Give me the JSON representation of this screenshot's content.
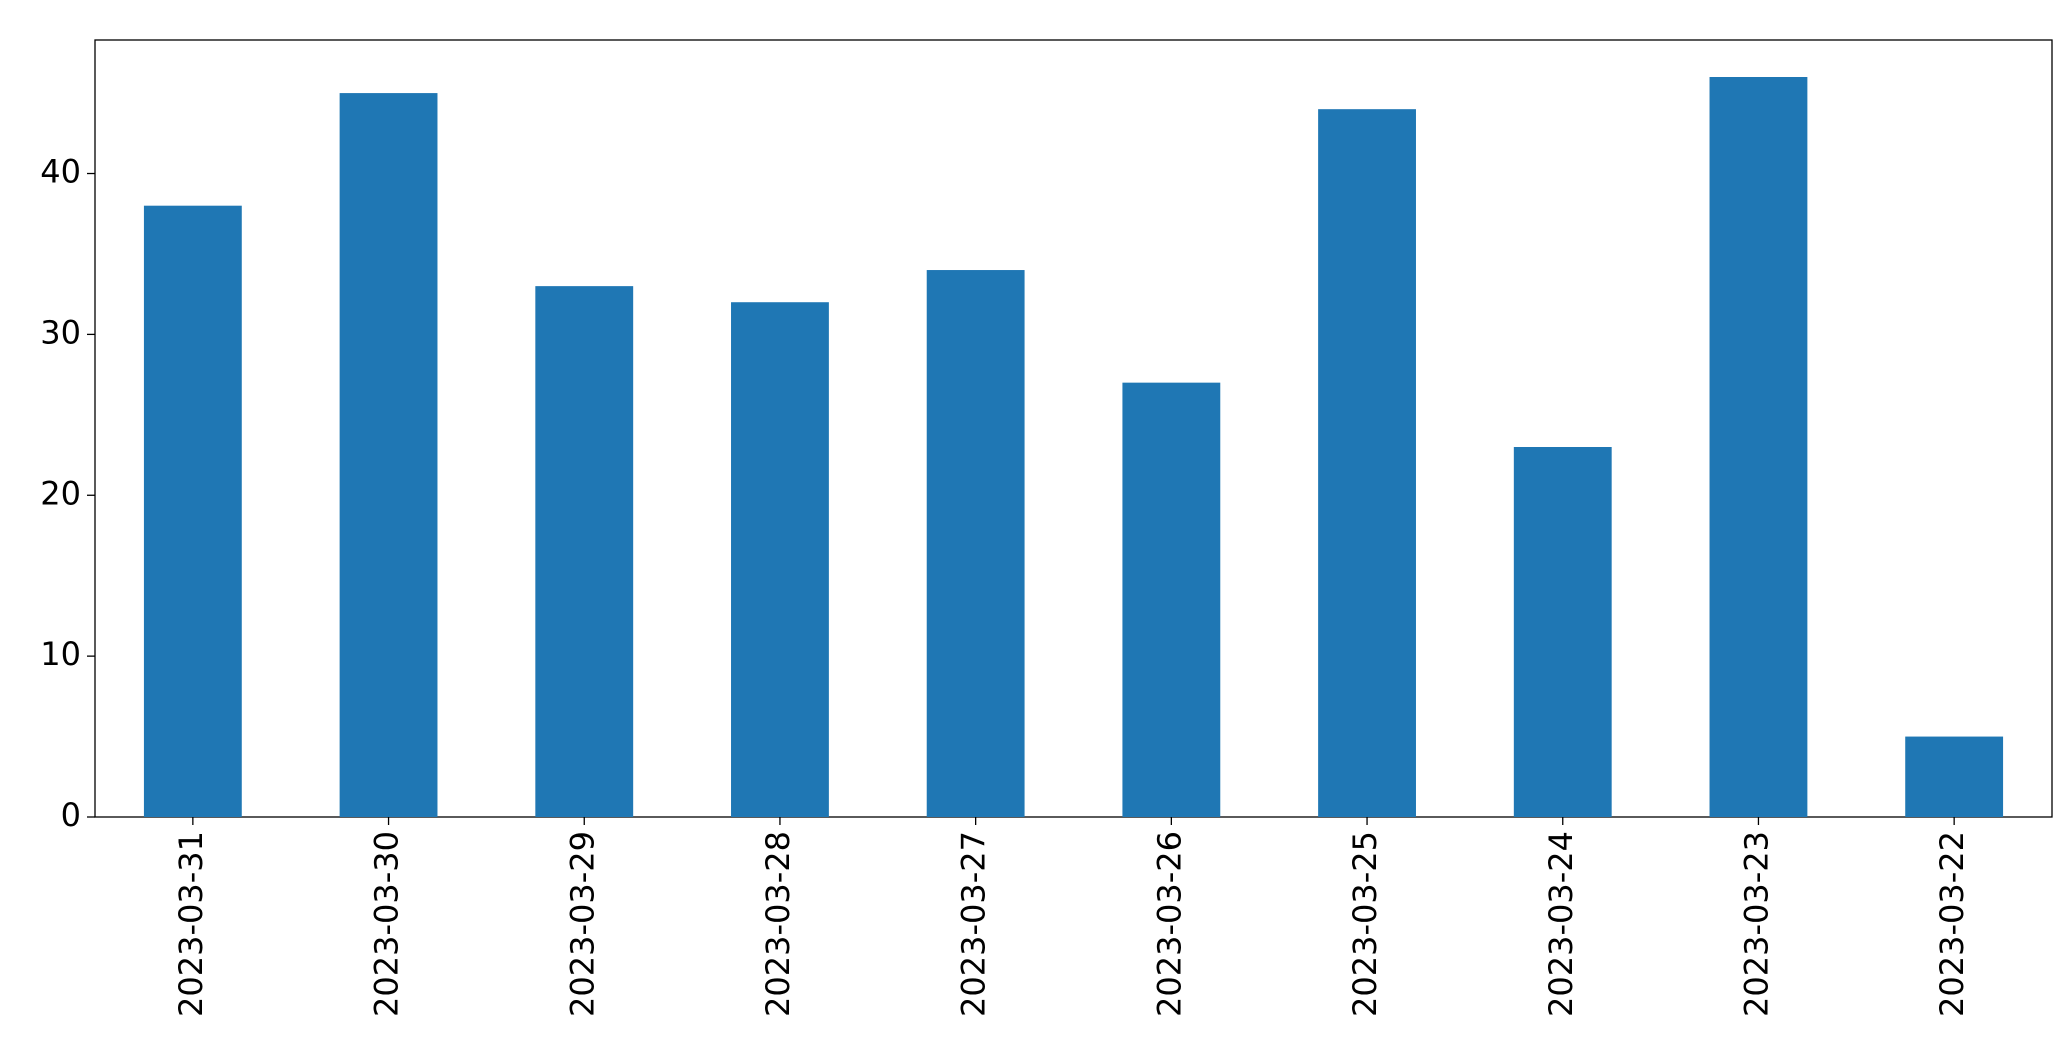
{
  "chart_data": {
    "type": "bar",
    "categories": [
      "2023-03-31",
      "2023-03-30",
      "2023-03-29",
      "2023-03-28",
      "2023-03-27",
      "2023-03-26",
      "2023-03-25",
      "2023-03-24",
      "2023-03-23",
      "2023-03-22"
    ],
    "values": [
      38,
      45,
      33,
      32,
      34,
      27,
      44,
      23,
      46,
      5
    ],
    "color": "#1f77b4",
    "ylim": [
      0,
      48.3
    ],
    "yticks": [
      0,
      10,
      20,
      30,
      40
    ],
    "grid": false
  }
}
